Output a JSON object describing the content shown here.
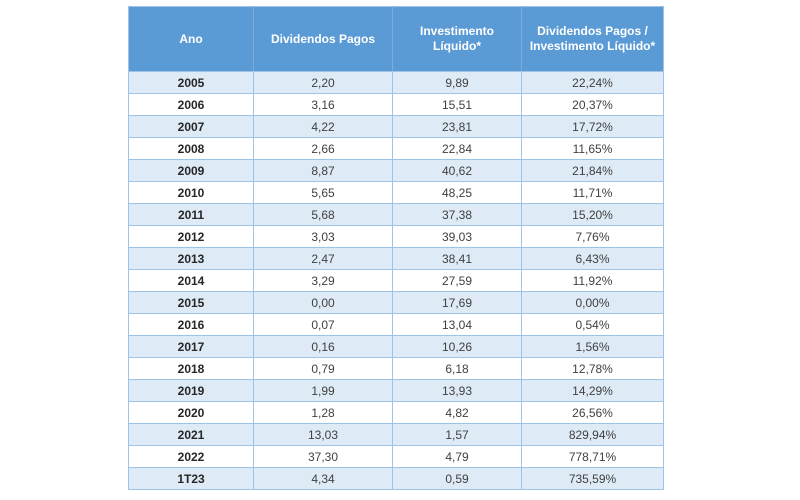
{
  "table": {
    "columns": [
      "Ano",
      "Dividendos Pagos",
      "Investimento Líquido*",
      "Dividendos Pagos / Investimento Líquido*"
    ],
    "rows": [
      [
        "2005",
        "2,20",
        "9,89",
        "22,24%"
      ],
      [
        "2006",
        "3,16",
        "15,51",
        "20,37%"
      ],
      [
        "2007",
        "4,22",
        "23,81",
        "17,72%"
      ],
      [
        "2008",
        "2,66",
        "22,84",
        "11,65%"
      ],
      [
        "2009",
        "8,87",
        "40,62",
        "21,84%"
      ],
      [
        "2010",
        "5,65",
        "48,25",
        "11,71%"
      ],
      [
        "2011",
        "5,68",
        "37,38",
        "15,20%"
      ],
      [
        "2012",
        "3,03",
        "39,03",
        "7,76%"
      ],
      [
        "2013",
        "2,47",
        "38,41",
        "6,43%"
      ],
      [
        "2014",
        "3,29",
        "27,59",
        "11,92%"
      ],
      [
        "2015",
        "0,00",
        "17,69",
        "0,00%"
      ],
      [
        "2016",
        "0,07",
        "13,04",
        "0,54%"
      ],
      [
        "2017",
        "0,16",
        "10,26",
        "1,56%"
      ],
      [
        "2018",
        "0,79",
        "6,18",
        "12,78%"
      ],
      [
        "2019",
        "1,99",
        "13,93",
        "14,29%"
      ],
      [
        "2020",
        "1,28",
        "4,82",
        "26,56%"
      ],
      [
        "2021",
        "13,03",
        "1,57",
        "829,94%"
      ],
      [
        "2022",
        "37,30",
        "4,79",
        "778,71%"
      ],
      [
        "1T23",
        "4,34",
        "0,59",
        "735,59%"
      ]
    ]
  },
  "colors": {
    "header_background": "#5B9BD5",
    "header_text": "#FFFFFF",
    "stripe_row_background": "#DEEAF6",
    "plain_row_background": "#FFFFFF",
    "border": "#9DC3E6",
    "cell_text": "#404040"
  }
}
